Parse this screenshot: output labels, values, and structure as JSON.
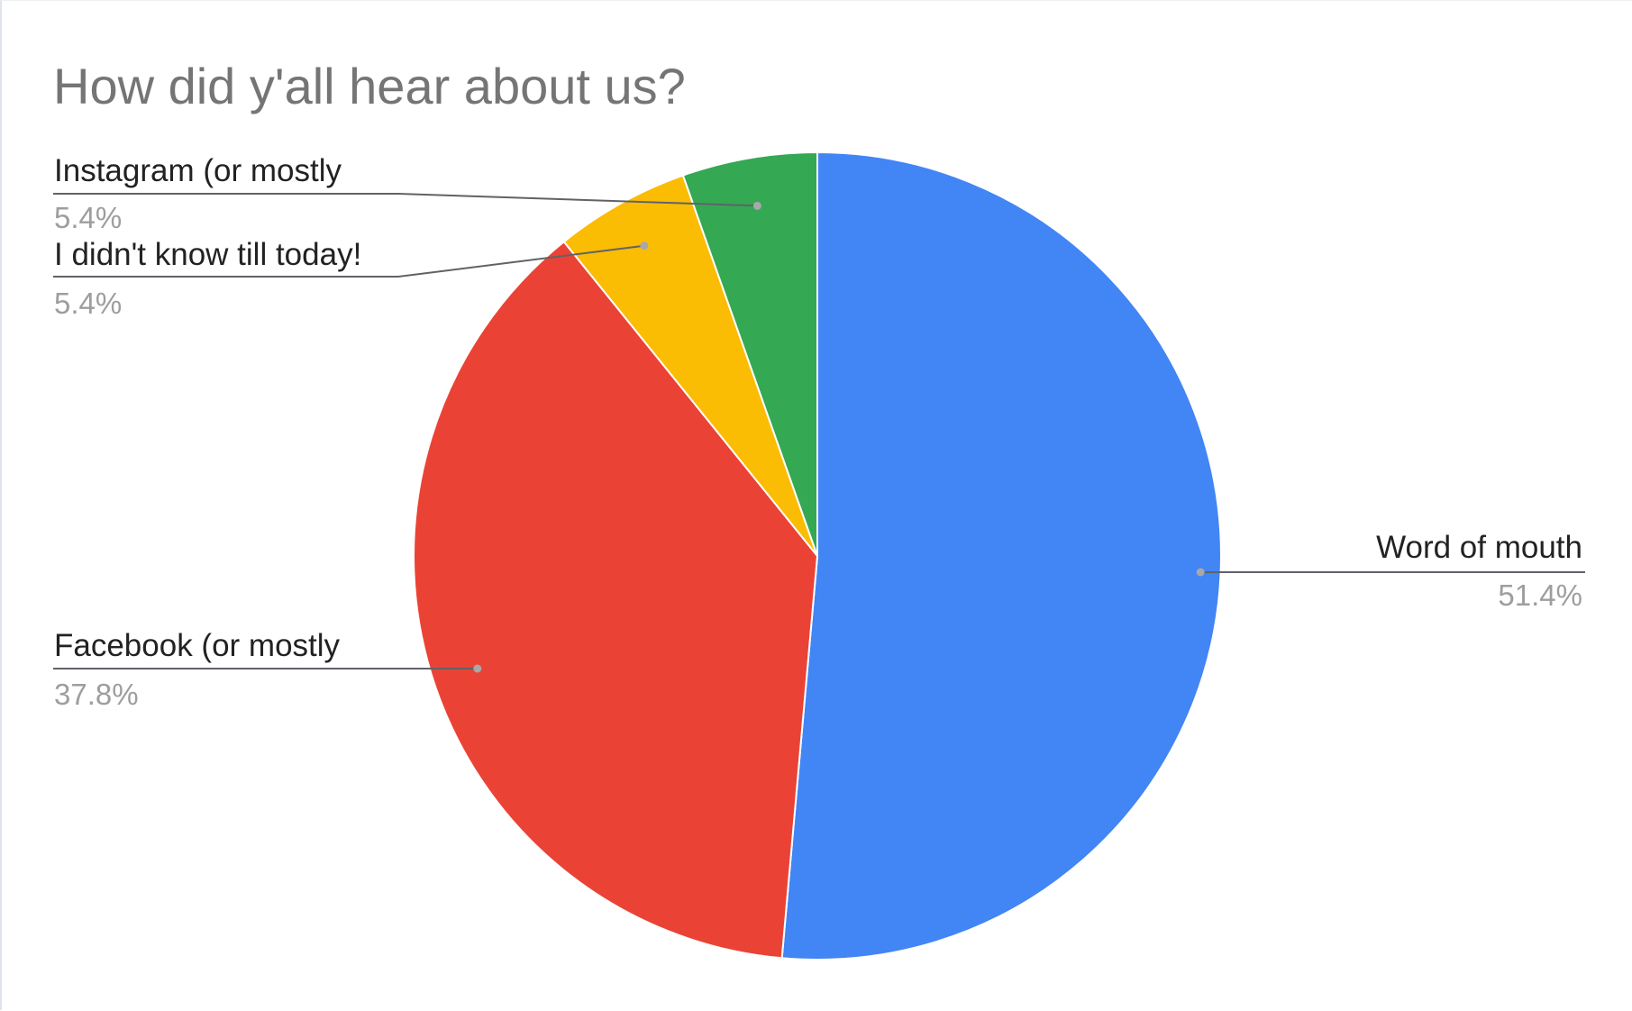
{
  "chart_data": {
    "type": "pie",
    "title": "How did y'all hear about us?",
    "start_angle_deg": 0,
    "direction": "clockwise",
    "slices": [
      {
        "label": "Word of mouth",
        "value": 51.4,
        "value_label": "51.4%",
        "color": "#4285F4"
      },
      {
        "label": "Facebook (or mostly",
        "value": 37.8,
        "value_label": "37.8%",
        "color": "#EA4335"
      },
      {
        "label": "I didn't know till today!",
        "value": 5.4,
        "value_label": "5.4%",
        "color": "#FBBC04"
      },
      {
        "label": "Instagram (or mostly",
        "value": 5.4,
        "value_label": "5.4%",
        "color": "#34A853"
      }
    ],
    "legend": "labels-on-leader-lines"
  }
}
